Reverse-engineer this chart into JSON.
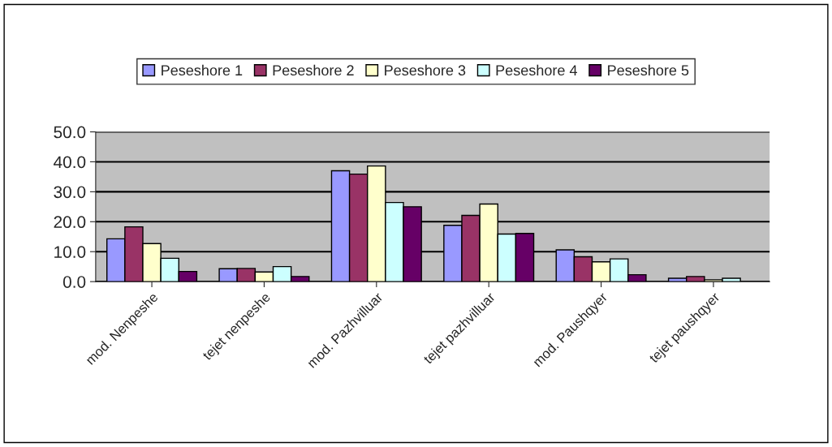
{
  "chart_data": {
    "type": "bar",
    "categories": [
      "mod. Nenpeshe",
      "tejet nenpeshe",
      "mod. Pazhvilluar",
      "tejet pazhvilluar",
      "mod. Paushqyer",
      "tejet paushqyer"
    ],
    "series": [
      {
        "name": "Peseshore 1",
        "color": "#9999ff",
        "values": [
          14.3,
          4.3,
          37.0,
          18.8,
          10.6,
          1.1
        ]
      },
      {
        "name": "Peseshore 2",
        "color": "#993366",
        "values": [
          18.3,
          4.4,
          35.9,
          22.1,
          8.3,
          1.7
        ]
      },
      {
        "name": "Peseshore 3",
        "color": "#ffffcc",
        "values": [
          12.7,
          3.2,
          38.6,
          25.9,
          6.6,
          0.6
        ]
      },
      {
        "name": "Peseshore 4",
        "color": "#ccffff",
        "values": [
          7.8,
          5.0,
          26.4,
          15.9,
          7.6,
          1.1
        ]
      },
      {
        "name": "Peseshore 5",
        "color": "#660066",
        "values": [
          3.4,
          1.7,
          25.0,
          16.1,
          2.3,
          null
        ]
      }
    ],
    "ylim": [
      0,
      50
    ],
    "yticks": [
      {
        "value": 0,
        "label": "0.0"
      },
      {
        "value": 10,
        "label": "10.0"
      },
      {
        "value": 20,
        "label": "20.0"
      },
      {
        "value": 30,
        "label": "30.0"
      },
      {
        "value": 40,
        "label": "40.0"
      },
      {
        "value": 50,
        "label": "50.0"
      }
    ],
    "grid": "y",
    "legend": "top"
  }
}
